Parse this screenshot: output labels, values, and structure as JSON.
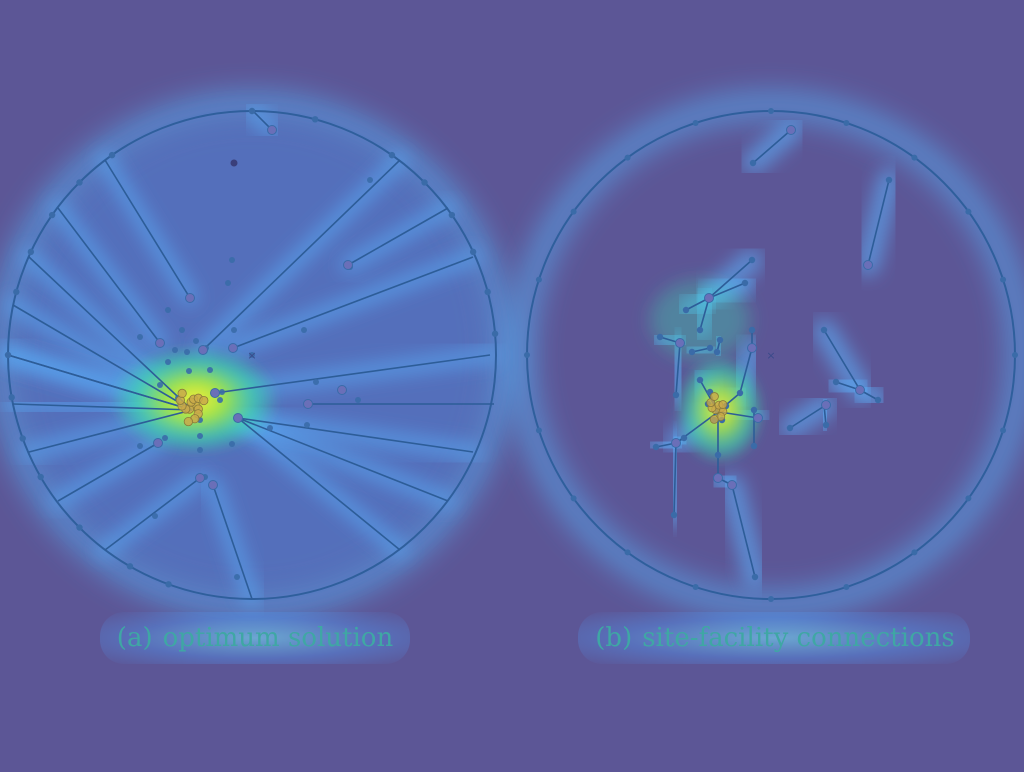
{
  "panels": [
    {
      "id": "a",
      "label": "(a)",
      "caption": "optimum solution"
    },
    {
      "id": "b",
      "label": "(b)",
      "caption": "site-facility connections"
    }
  ],
  "colors": {
    "background": "#5c5696",
    "circle_stroke": "#2f5f9c",
    "lines": "#2d5d98",
    "site_nodes": "#3a6ba8",
    "facility_nodes": "#6a6fb8",
    "caption": "#3fa7a4",
    "heat_low": "#4aa8ff",
    "heat_mid": "#39d6b0",
    "heat_high": "#f4ee3a"
  },
  "center_marker": "×"
}
